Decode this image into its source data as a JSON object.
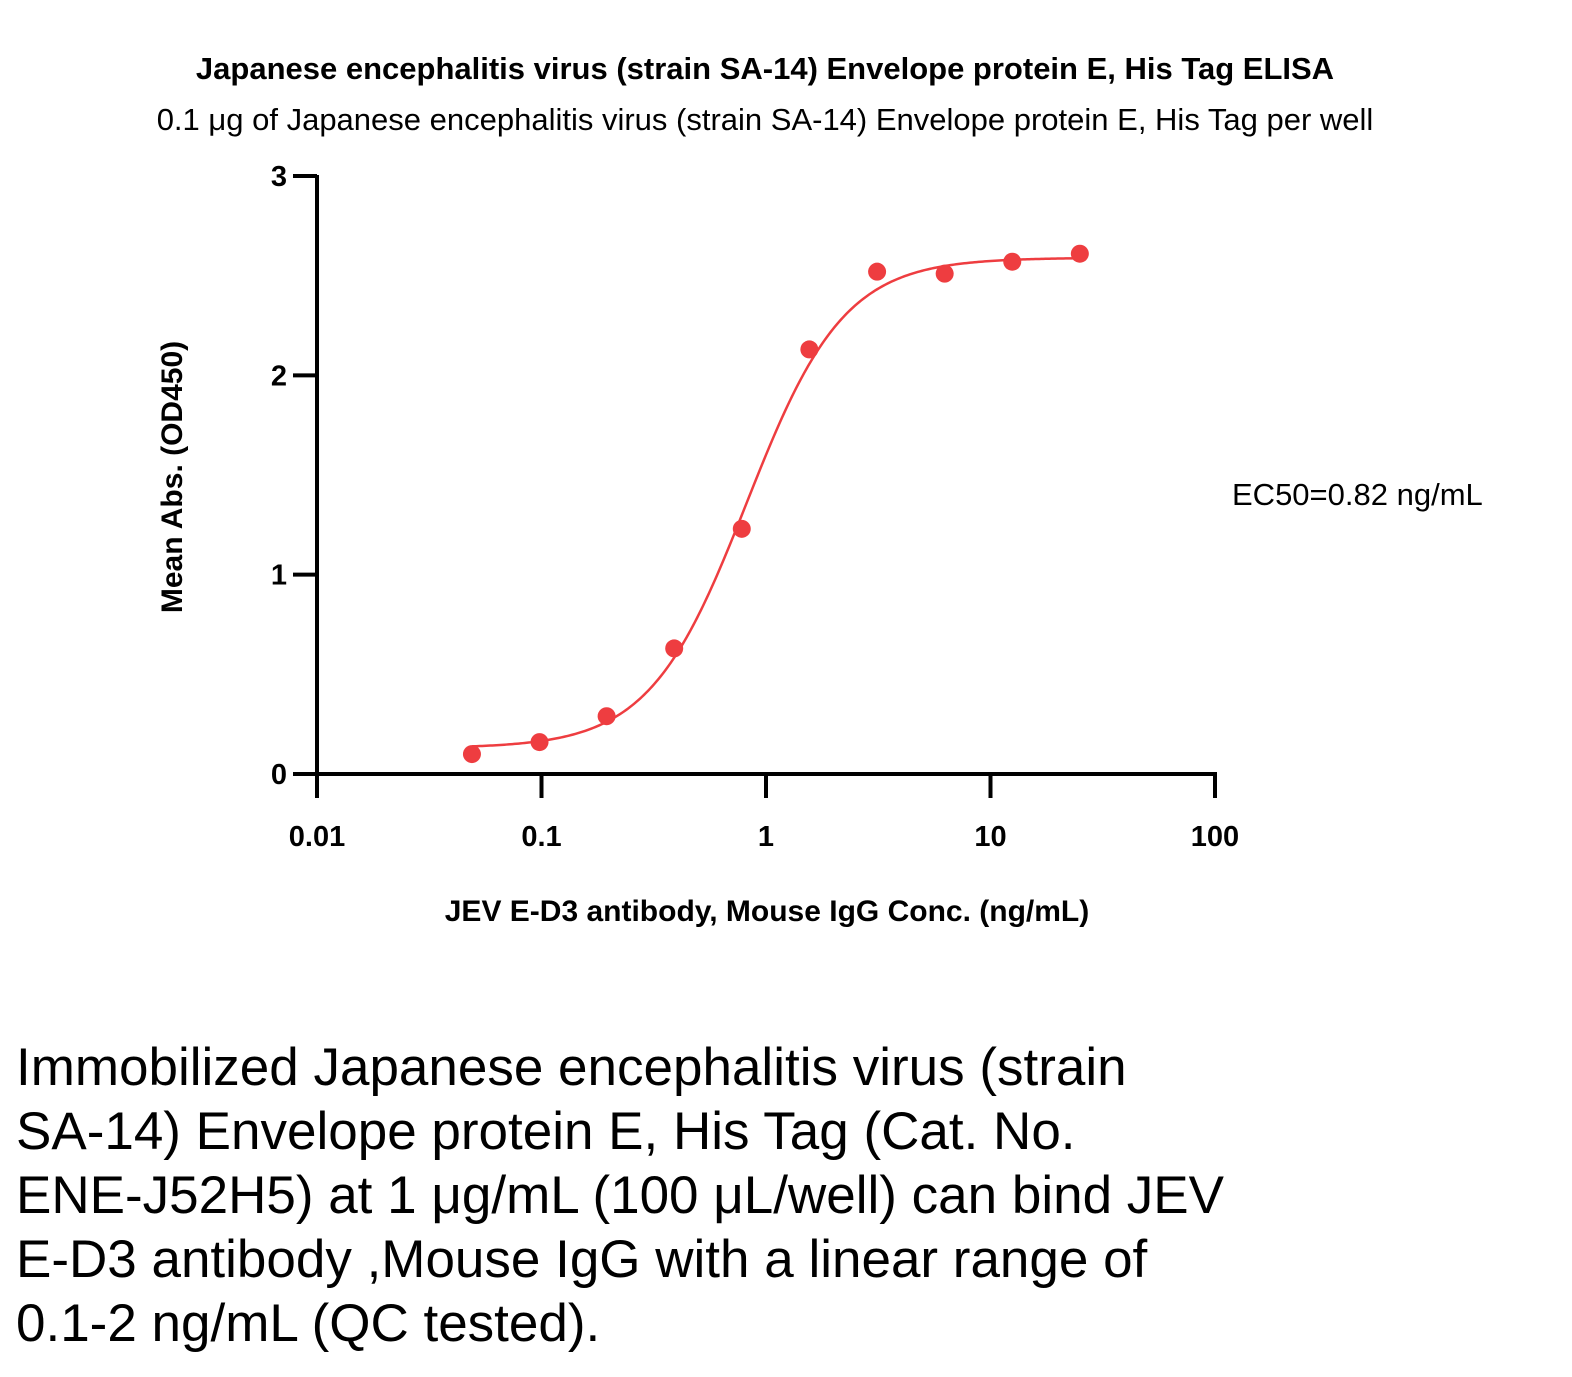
{
  "chart_data": {
    "type": "scatter",
    "title": "Japanese encephalitis virus (strain SA-14) Envelope protein E, His Tag ELISA",
    "subtitle": "0.1 μg of Japanese encephalitis virus (strain SA-14) Envelope protein E, His Tag per well",
    "xlabel": "JEV E-D3 antibody, Mouse IgG Conc. (ng/mL)",
    "ylabel": "Mean Abs. (OD450)",
    "xscale": "log",
    "xlim": [
      0.01,
      100
    ],
    "ylim": [
      0,
      3
    ],
    "xticks": [
      0.01,
      0.1,
      1,
      10,
      100
    ],
    "xtick_labels": [
      "0.01",
      "0.1",
      "1",
      "10",
      "100"
    ],
    "yticks": [
      0,
      1,
      2,
      3
    ],
    "ytick_labels": [
      "0",
      "1",
      "2",
      "3"
    ],
    "grid": false,
    "series": [
      {
        "x": [
          0.049,
          0.098,
          0.195,
          0.39,
          0.78,
          1.56,
          3.125,
          6.25,
          12.5,
          25
        ],
        "y": [
          0.1,
          0.16,
          0.29,
          0.63,
          1.23,
          2.13,
          2.52,
          2.51,
          2.57,
          2.61
        ],
        "color": "#ee3d40",
        "fit": {
          "model": "4PL",
          "bottom": 0.13,
          "top": 2.59,
          "ec50": 0.82,
          "hill": 2.0,
          "range": [
            0.049,
            25
          ]
        }
      }
    ],
    "annotations": [
      "EC50=0.82 ng/mL"
    ]
  },
  "caption": "Immobilized Japanese encephalitis virus (strain\nSA-14) Envelope protein E, His Tag (Cat. No.\nENE-J52H5) at 1 μg/mL (100 μL/well) can bind JEV\nE-D3 antibody ,Mouse IgG with a linear range of\n0.1-2 ng/mL (QC tested)."
}
